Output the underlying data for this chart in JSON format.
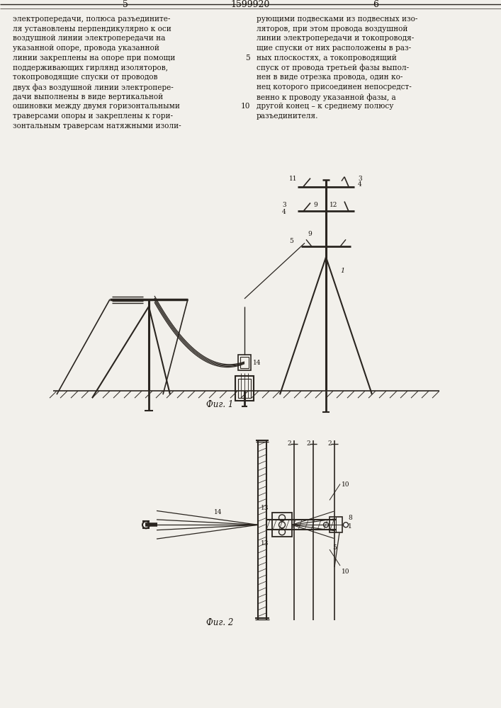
{
  "page_num_left": "5",
  "page_num_center": "1599920",
  "page_num_right": "6",
  "bg_color": "#f2f0eb",
  "line_color": "#2a2520",
  "text_color": "#1a1510",
  "left_text": "электропередачи, полюса разъедините-\nля установлены перпендикулярно к оси\nвоздушной линии электропередачи на\nуказанной опоре, провода указанной\nлинии закреплены на опоре при помощи\nподдерживающих гирлянд изоляторов,\nтокопроводящие спуски от проводов\nдвух фаз воздушной линии электропере-\nдачи выполнены в виде вертикальной\nошиновки между двумя горизонтальными\nтраверсами опоры и закреплены к гори-\nзонтальным траверсам натяжными изоли-",
  "right_text": "рующими подвесками из подвесных изо-\nляторов, при этом провода воздушной\nлинии электропередачи и токопроводя-\nщие спуски от них расположены в раз-\nных плоскостях, а токопроводящий\nспуск от провода третьей фазы выпол-\nнен в виде отрезка провода, один ко-\nнец которого присоединен непосредст-\nвенно к проводу указанной фазы, а\nдругой конец – к среднему полюсу\nразъединителя.",
  "fig1_caption": "Фиг. 1",
  "fig2_caption": "Фиг. 2"
}
